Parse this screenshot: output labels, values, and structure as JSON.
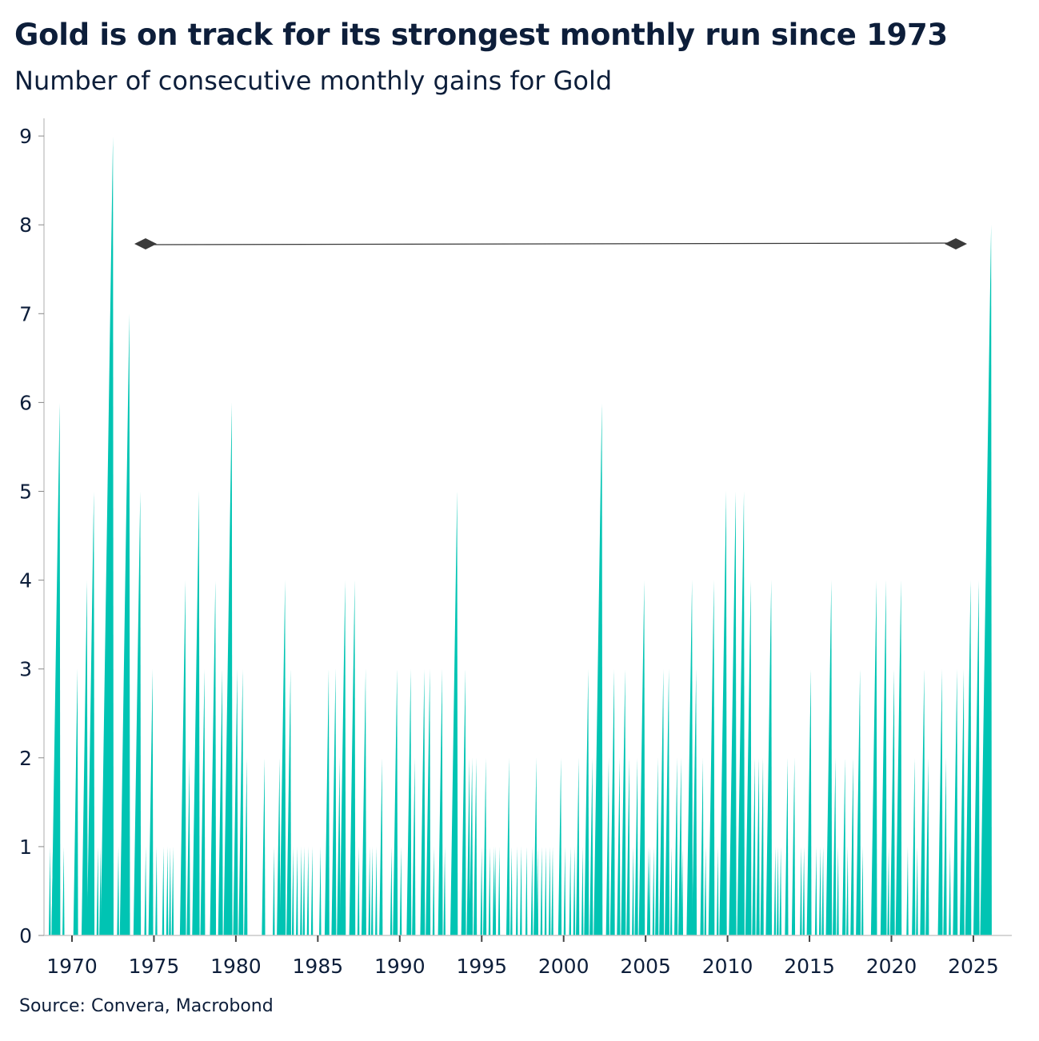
{
  "title": "Gold is on track for its strongest monthly run since 1973",
  "subtitle": "Number of consecutive monthly gains for Gold",
  "source": "Source: Convera, Macrobond",
  "colors": {
    "area": "#00c4b3",
    "annotation": "#3a3a3a",
    "text": "#0d1e3a",
    "axis": "#c8c8c8"
  },
  "chart_data": {
    "type": "area",
    "title": "Gold is on track for its strongest monthly run since 1973",
    "subtitle": "Number of consecutive monthly gains for Gold",
    "xlabel": "",
    "ylabel": "",
    "xlim": [
      "1968-06",
      "2026-06"
    ],
    "ylim": [
      0,
      9
    ],
    "x_ticks": [
      "1970",
      "1975",
      "1980",
      "1985",
      "1990",
      "1995",
      "2000",
      "2005",
      "2010",
      "2015",
      "2020",
      "2025"
    ],
    "y_ticks": [
      "0",
      "1",
      "2",
      "3",
      "4",
      "5",
      "6",
      "7",
      "8",
      "9"
    ],
    "grid": false,
    "legend": "none",
    "annotation": {
      "type": "double-arrow",
      "from": "1974-06",
      "to": "2024-06",
      "y": 7.8
    },
    "run_peaks": [
      [
        "1968-09",
        1
      ],
      [
        "1968-11",
        1
      ],
      [
        "1969-04",
        6
      ],
      [
        "1969-07",
        1
      ],
      [
        "1970-05",
        3
      ],
      [
        "1970-12",
        4
      ],
      [
        "1971-05",
        5
      ],
      [
        "1971-08",
        1
      ],
      [
        "1971-10",
        1
      ],
      [
        "1972-07",
        9
      ],
      [
        "1972-11",
        1
      ],
      [
        "1973-07",
        7
      ],
      [
        "1974-03",
        5
      ],
      [
        "1974-07",
        1
      ],
      [
        "1974-12",
        3
      ],
      [
        "1975-03",
        1
      ],
      [
        "1975-08",
        1
      ],
      [
        "1975-11",
        1
      ],
      [
        "1976-01",
        1
      ],
      [
        "1976-03",
        1
      ],
      [
        "1976-12",
        4
      ],
      [
        "1977-03",
        2
      ],
      [
        "1977-10",
        5
      ],
      [
        "1978-02",
        3
      ],
      [
        "1978-10",
        4
      ],
      [
        "1979-03",
        3
      ],
      [
        "1979-10",
        6
      ],
      [
        "1980-02",
        3
      ],
      [
        "1980-06",
        3
      ],
      [
        "1980-09",
        2
      ],
      [
        "1981-10",
        2
      ],
      [
        "1982-05",
        1
      ],
      [
        "1982-09",
        2
      ],
      [
        "1983-01",
        4
      ],
      [
        "1983-05",
        3
      ],
      [
        "1983-07",
        1
      ],
      [
        "1983-10",
        1
      ],
      [
        "1984-01",
        1
      ],
      [
        "1984-03",
        1
      ],
      [
        "1984-06",
        1
      ],
      [
        "1984-09",
        1
      ],
      [
        "1985-03",
        1
      ],
      [
        "1985-09",
        3
      ],
      [
        "1986-02",
        3
      ],
      [
        "1986-05",
        2
      ],
      [
        "1986-09",
        4
      ],
      [
        "1987-04",
        4
      ],
      [
        "1987-07",
        1
      ],
      [
        "1987-12",
        3
      ],
      [
        "1988-03",
        1
      ],
      [
        "1988-05",
        1
      ],
      [
        "1988-08",
        1
      ],
      [
        "1988-12",
        2
      ],
      [
        "1989-07",
        1
      ],
      [
        "1989-11",
        3
      ],
      [
        "1990-02",
        1
      ],
      [
        "1990-09",
        3
      ],
      [
        "1990-12",
        2
      ],
      [
        "1991-07",
        3
      ],
      [
        "1991-11",
        3
      ],
      [
        "1992-02",
        1
      ],
      [
        "1992-08",
        3
      ],
      [
        "1992-10",
        1
      ],
      [
        "1993-07",
        5
      ],
      [
        "1994-01",
        3
      ],
      [
        "1994-04",
        2
      ],
      [
        "1994-06",
        2
      ],
      [
        "1994-09",
        2
      ],
      [
        "1995-01",
        1
      ],
      [
        "1995-04",
        2
      ],
      [
        "1995-07",
        1
      ],
      [
        "1995-10",
        1
      ],
      [
        "1995-11",
        1
      ],
      [
        "1996-02",
        1
      ],
      [
        "1996-09",
        2
      ],
      [
        "1996-11",
        1
      ],
      [
        "1997-03",
        1
      ],
      [
        "1997-06",
        1
      ],
      [
        "1997-10",
        1
      ],
      [
        "1998-02",
        1
      ],
      [
        "1998-05",
        2
      ],
      [
        "1998-06",
        1
      ],
      [
        "1998-09",
        1
      ],
      [
        "1998-12",
        1
      ],
      [
        "1999-03",
        1
      ],
      [
        "1999-05",
        1
      ],
      [
        "1999-11",
        2
      ],
      [
        "2000-02",
        1
      ],
      [
        "2000-06",
        1
      ],
      [
        "2000-09",
        1
      ],
      [
        "2000-12",
        2
      ],
      [
        "2001-03",
        1
      ],
      [
        "2001-07",
        3
      ],
      [
        "2001-10",
        2
      ],
      [
        "2002-05",
        6
      ],
      [
        "2002-10",
        2
      ],
      [
        "2003-02",
        3
      ],
      [
        "2003-06",
        2
      ],
      [
        "2003-10",
        3
      ],
      [
        "2004-01",
        2
      ],
      [
        "2004-04",
        1
      ],
      [
        "2004-07",
        2
      ],
      [
        "2004-12",
        4
      ],
      [
        "2005-03",
        1
      ],
      [
        "2005-04",
        1
      ],
      [
        "2005-07",
        1
      ],
      [
        "2005-10",
        2
      ],
      [
        "2006-02",
        3
      ],
      [
        "2006-06",
        3
      ],
      [
        "2006-08",
        1
      ],
      [
        "2006-12",
        2
      ],
      [
        "2007-03",
        2
      ],
      [
        "2007-04",
        1
      ],
      [
        "2007-11",
        4
      ],
      [
        "2008-02",
        3
      ],
      [
        "2008-07",
        2
      ],
      [
        "2008-09",
        1
      ],
      [
        "2009-03",
        4
      ],
      [
        "2009-06",
        1
      ],
      [
        "2009-12",
        5
      ],
      [
        "2010-07",
        5
      ],
      [
        "2011-01",
        5
      ],
      [
        "2011-06",
        4
      ],
      [
        "2011-09",
        2
      ],
      [
        "2011-12",
        2
      ],
      [
        "2012-03",
        2
      ],
      [
        "2012-09",
        4
      ],
      [
        "2012-12",
        1
      ],
      [
        "2013-02",
        1
      ],
      [
        "2013-04",
        1
      ],
      [
        "2013-09",
        2
      ],
      [
        "2014-02",
        2
      ],
      [
        "2014-07",
        1
      ],
      [
        "2014-09",
        1
      ],
      [
        "2015-02",
        3
      ],
      [
        "2015-06",
        1
      ],
      [
        "2015-09",
        1
      ],
      [
        "2015-11",
        1
      ],
      [
        "2016-05",
        4
      ],
      [
        "2016-08",
        2
      ],
      [
        "2016-10",
        1
      ],
      [
        "2017-03",
        2
      ],
      [
        "2017-05",
        1
      ],
      [
        "2017-09",
        2
      ],
      [
        "2018-02",
        3
      ],
      [
        "2018-04",
        1
      ],
      [
        "2019-02",
        4
      ],
      [
        "2019-09",
        4
      ],
      [
        "2019-11",
        1
      ],
      [
        "2020-03",
        3
      ],
      [
        "2020-08",
        4
      ],
      [
        "2021-01",
        1
      ],
      [
        "2021-06",
        2
      ],
      [
        "2021-08",
        1
      ],
      [
        "2022-01",
        3
      ],
      [
        "2022-04",
        2
      ],
      [
        "2023-02",
        3
      ],
      [
        "2023-05",
        2
      ],
      [
        "2023-08",
        1
      ],
      [
        "2024-01",
        3
      ],
      [
        "2024-06",
        3
      ],
      [
        "2024-11",
        4
      ],
      [
        "2025-05",
        4
      ],
      [
        "2026-02",
        8
      ]
    ]
  }
}
